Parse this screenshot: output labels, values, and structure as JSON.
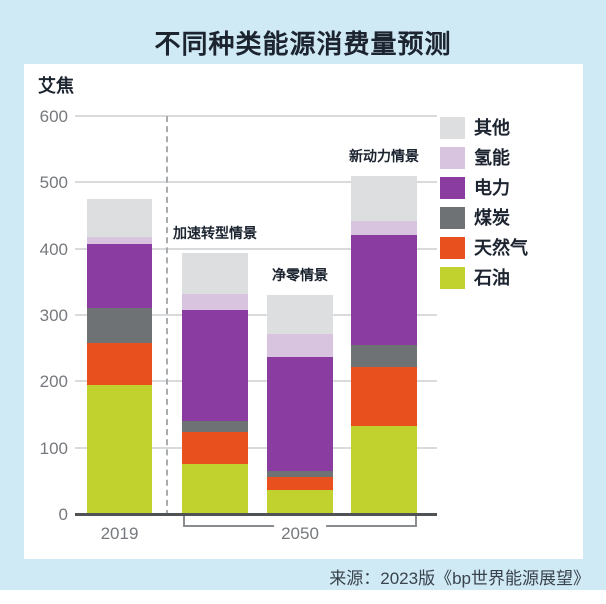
{
  "page": {
    "title": "不同种类能源消费量预测",
    "source": "来源：2023版《bp世界能源展望》"
  },
  "colors": {
    "page_background": "#cfe9f5",
    "panel_background": "#ffffff",
    "title_text": "#1c2430",
    "tick_text": "#76797d",
    "grid_line": "#d9dadb",
    "axis_line": "#4f5356",
    "bracket_line": "#898d90",
    "source_text": "#39434c"
  },
  "chart_data": {
    "type": "bar",
    "stacked": true,
    "title": "不同种类能源消费量预测",
    "unit_label": "艾焦",
    "ylabel": "艾焦",
    "ylim": [
      0,
      600
    ],
    "yticks": [
      600,
      500,
      400,
      300,
      200,
      100,
      0
    ],
    "grid": true,
    "legend_position": "right",
    "legend": [
      {
        "id": "other",
        "label": "其他",
        "color": "#dcdedf"
      },
      {
        "id": "hydrogen",
        "label": "氢能",
        "color": "#d8c4df"
      },
      {
        "id": "electricity",
        "label": "电力",
        "color": "#8a3ca0"
      },
      {
        "id": "coal",
        "label": "煤炭",
        "color": "#6f7275"
      },
      {
        "id": "gas",
        "label": "天然气",
        "color": "#e8501e"
      },
      {
        "id": "oil",
        "label": "石油",
        "color": "#c1d12e"
      }
    ],
    "stack_order_bottom_to_top": [
      "oil",
      "gas",
      "coal",
      "electricity",
      "hydrogen",
      "other"
    ],
    "bars": [
      {
        "id": "2019",
        "group": "2019",
        "scenario_label": "",
        "values": {
          "oil": 195,
          "gas": 63,
          "coal": 53,
          "electricity": 96,
          "hydrogen": 10,
          "other": 58
        },
        "total": 475
      },
      {
        "id": "accelerated-transition",
        "group": "2050",
        "scenario_label": "加速转型情景",
        "values": {
          "oil": 75,
          "gas": 48,
          "coal": 17,
          "electricity": 168,
          "hydrogen": 24,
          "other": 62
        },
        "total": 394
      },
      {
        "id": "net-zero",
        "group": "2050",
        "scenario_label": "净零情景",
        "values": {
          "oil": 36,
          "gas": 20,
          "coal": 9,
          "electricity": 171,
          "hydrogen": 36,
          "other": 58
        },
        "total": 330
      },
      {
        "id": "new-momentum",
        "group": "2050",
        "scenario_label": "新动力情景",
        "values": {
          "oil": 133,
          "gas": 89,
          "coal": 32,
          "electricity": 166,
          "hydrogen": 22,
          "other": 68
        },
        "total": 510
      }
    ],
    "x_axis": {
      "labels": [
        {
          "id": "2019",
          "text": "2019"
        },
        {
          "id": "2050",
          "text": "2050"
        }
      ]
    }
  }
}
